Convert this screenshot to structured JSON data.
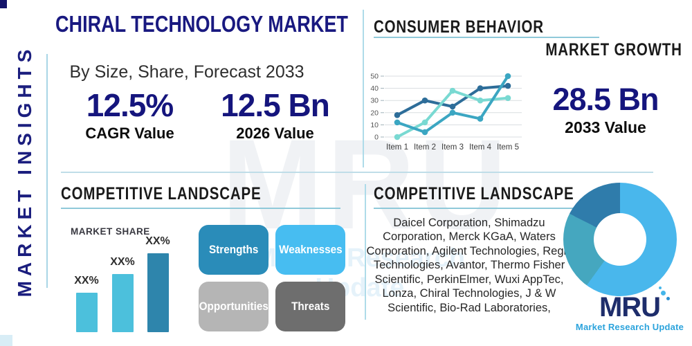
{
  "sidebar": {
    "label": "MARKET INSIGHTS"
  },
  "header": {
    "title": "CHIRAL TECHNOLOGY MARKET",
    "subtitle": "By Size, Share, Forecast 2033"
  },
  "stats": {
    "cagr": {
      "value": "12.5%",
      "label": "CAGR Value"
    },
    "base": {
      "value": "12.5 Bn",
      "label": "2026 Value"
    },
    "forecast": {
      "value": "28.5 Bn",
      "label": "2033 Value"
    }
  },
  "sections": {
    "consumer_behavior": {
      "title": "CONSUMER BEHAVIOR",
      "subtitle": "MARKET GROWTH"
    },
    "competitive_left": {
      "title": "COMPETITIVE LANDSCAPE",
      "chart_label": "MARKET SHARE"
    },
    "competitive_right": {
      "title": "COMPETITIVE LANDSCAPE",
      "companies": "Daicel Corporation, Shimadzu Corporation, Merck KGaA, Waters Corporation, Agilent Technologies, Regis Technologies, Avantor, Thermo Fisher Scientific, PerkinElmer, Wuxi AppTec, Lonza, Chiral Technologies, J & W Scientific, Bio-Rad Laboratories,"
    }
  },
  "swot": [
    {
      "label": "Strengths",
      "color": "#2a8cb9"
    },
    {
      "label": "Weaknesses",
      "color": "#47bdf1"
    },
    {
      "label": "Opportunities",
      "color": "#b5b5b5"
    },
    {
      "label": "Threats",
      "color": "#6e6e6e"
    }
  ],
  "logo": {
    "text": "MRU",
    "tagline": "Market Research Update"
  },
  "watermark": {
    "text": "MRU",
    "tagline": "Market Research Update"
  },
  "colors": {
    "navy": "#15157d",
    "heading_underline": "#8fc9d9",
    "divider": "#b5dce9",
    "sidebar_text": "#1b1e7e"
  },
  "chart_data": [
    {
      "type": "line",
      "title": "MARKET GROWTH",
      "x": [
        "Item 1",
        "Item 2",
        "Item 3",
        "Item 4",
        "Item 5"
      ],
      "series": [
        {
          "name": "series-dark-blue",
          "color": "#2d6d99",
          "values": [
            18,
            30,
            25,
            40,
            42
          ]
        },
        {
          "name": "series-light-aqua",
          "color": "#79d9d2",
          "values": [
            0,
            12,
            38,
            30,
            32
          ]
        },
        {
          "name": "series-medium-teal",
          "color": "#3ba6c2",
          "values": [
            12,
            4,
            20,
            15,
            50
          ]
        }
      ],
      "ylim": [
        0,
        50
      ],
      "yticks": [
        0,
        10,
        20,
        30,
        40,
        50
      ],
      "grid": true,
      "legend": false
    },
    {
      "type": "bar",
      "title": "MARKET SHARE",
      "categories": [
        "",
        "",
        ""
      ],
      "labels": [
        "XX%",
        "XX%",
        "XX%"
      ],
      "values": [
        25,
        37,
        50
      ],
      "colors": [
        "#4cc0dc",
        "#4cc0dc",
        "#2e85ac"
      ],
      "ylim": [
        0,
        50
      ],
      "grid": false
    },
    {
      "type": "donut",
      "segments": [
        {
          "name": "segment-light-blue",
          "value": 60,
          "color": "#49b7ec"
        },
        {
          "name": "segment-teal",
          "value": 22.5,
          "color": "#45a7bf"
        },
        {
          "name": "segment-steel-blue",
          "value": 17.5,
          "color": "#2f7cab"
        }
      ]
    }
  ]
}
